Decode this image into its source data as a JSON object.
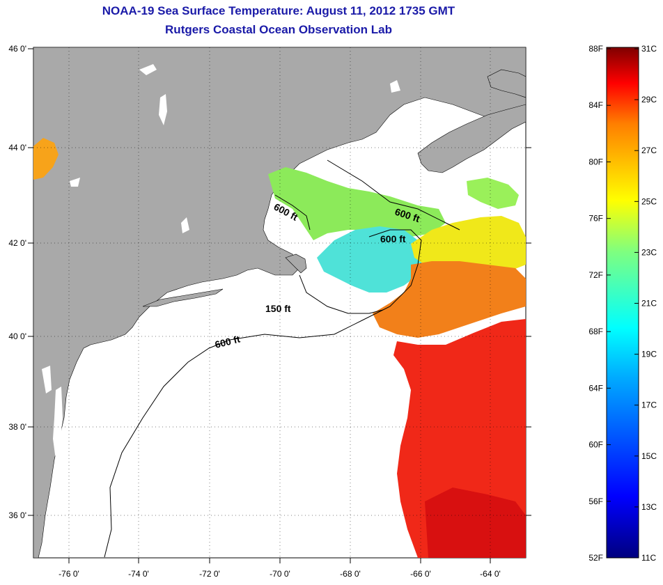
{
  "header": {
    "title": "NOAA-19 Sea Surface Temperature:  August 11, 2012 1735 GMT",
    "subtitle": "Rutgers Coastal Ocean Observation Lab"
  },
  "map": {
    "lat_labels": [
      "46 0'",
      "44 0'",
      "42 0'",
      "40 0'",
      "38 0'",
      "36 0'"
    ],
    "lon_labels": [
      "-76 0'",
      "-74 0'",
      "-72 0'",
      "-70 0'",
      "-68 0'",
      "-66 0'",
      "-64 0'"
    ],
    "contours": [
      {
        "label": "600 ft"
      },
      {
        "label": "600 ft"
      },
      {
        "label": "600 ft"
      },
      {
        "label": "150 ft"
      },
      {
        "label": "600 ft"
      }
    ],
    "colors": {
      "land": "#a9a9a9",
      "ocean_no_data": "#ffffff"
    }
  },
  "colorbar": {
    "fahrenheit": [
      "88F",
      "84F",
      "80F",
      "76F",
      "72F",
      "68F",
      "64F",
      "60F",
      "56F",
      "52F"
    ],
    "celsius": [
      "31C",
      "29C",
      "27C",
      "25C",
      "23C",
      "21C",
      "19C",
      "17C",
      "15C",
      "13C",
      "11C"
    ],
    "range_c": [
      11,
      31
    ]
  }
}
